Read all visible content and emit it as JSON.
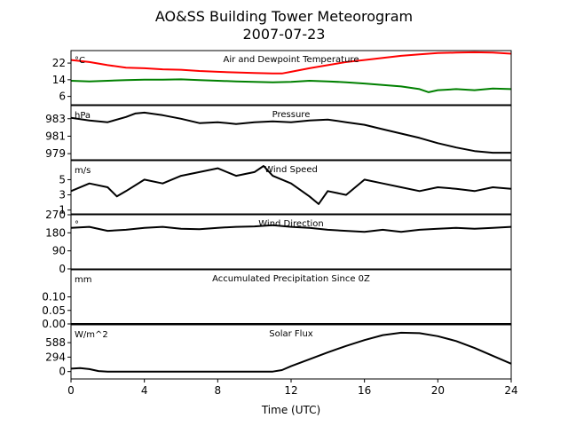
{
  "figure": {
    "title": "AO&SS Building Tower Meteorogram",
    "subtitle": "2007-07-23",
    "xlabel": "Time (UTC)"
  },
  "chart_data": {
    "type": "line",
    "x_axis": {
      "label": "Time (UTC)",
      "range": [
        0,
        24
      ],
      "ticks": [
        0,
        4,
        8,
        12,
        16,
        20,
        24
      ],
      "tick_labels": [
        "0",
        "4",
        "8",
        "12",
        "16",
        "20",
        "24"
      ]
    },
    "panels": [
      {
        "title": "Air and Dewpoint Temperature",
        "unit": "°C",
        "ylim": [
          2,
          28
        ],
        "yticks": [
          6,
          14,
          22
        ],
        "ytick_labels": [
          "6",
          "14",
          "22"
        ],
        "series": [
          {
            "color": "#ff0000",
            "x": [
              0,
              1,
              2,
              3,
              4,
              5,
              6,
              7,
              8,
              9,
              10,
              11,
              11.5,
              12,
              13,
              14,
              15,
              16,
              17,
              18,
              19,
              20,
              21,
              22,
              23,
              24
            ],
            "y": [
              23.5,
              22.5,
              21,
              19.8,
              19.5,
              19,
              18.8,
              18.2,
              17.8,
              17.5,
              17.2,
              17,
              17,
              17.8,
              19.5,
              21,
              22.5,
              23.5,
              24.5,
              25.5,
              26.2,
              26.8,
              27,
              27.2,
              27,
              26.5
            ]
          },
          {
            "color": "#008000",
            "x": [
              0,
              1,
              2,
              3,
              4,
              5,
              6,
              7,
              8,
              9,
              10,
              11,
              12,
              13,
              14,
              15,
              16,
              17,
              18,
              19,
              19.5,
              20,
              21,
              22,
              23,
              24
            ],
            "y": [
              13.5,
              13.2,
              13.5,
              13.8,
              14,
              14,
              14.2,
              13.8,
              13.5,
              13.2,
              13,
              12.8,
              13,
              13.5,
              13.2,
              12.8,
              12.2,
              11.5,
              10.8,
              9.5,
              8,
              9,
              9.5,
              9,
              9.8,
              9.5
            ]
          }
        ]
      },
      {
        "title": "Pressure",
        "unit": "hPa",
        "ylim": [
          978.3,
          984.5
        ],
        "yticks": [
          979,
          981,
          983
        ],
        "ytick_labels": [
          "979",
          "981",
          "983"
        ],
        "series": [
          {
            "color": "#000000",
            "x": [
              0,
              1,
              2,
              3,
              3.5,
              4,
              5,
              6,
              7,
              8,
              9,
              10,
              11,
              12,
              13,
              14,
              15,
              16,
              17,
              18,
              19,
              20,
              21,
              22,
              23,
              24
            ],
            "y": [
              983.1,
              982.8,
              982.6,
              983.2,
              983.6,
              983.7,
              983.4,
              983.0,
              982.5,
              982.6,
              982.4,
              982.6,
              982.7,
              982.6,
              982.8,
              982.9,
              982.6,
              982.3,
              981.8,
              981.3,
              980.8,
              980.2,
              979.7,
              979.3,
              979.1,
              979.1
            ]
          }
        ]
      },
      {
        "title": "Wind Speed",
        "unit": "m/s",
        "ylim": [
          0.5,
          7.5
        ],
        "yticks": [
          1,
          3,
          5
        ],
        "ytick_labels": [
          "1",
          "3",
          "5"
        ],
        "series": [
          {
            "color": "#000000",
            "x": [
              0,
              1,
              2,
              2.5,
              3,
              4,
              5,
              6,
              7,
              8,
              9,
              10,
              10.5,
              11,
              12,
              13,
              13.5,
              14,
              15,
              16,
              17,
              18,
              19,
              20,
              21,
              22,
              23,
              24
            ],
            "y": [
              3.5,
              4.5,
              4,
              2.8,
              3.5,
              5,
              4.5,
              5.5,
              6,
              6.5,
              5.5,
              6,
              6.8,
              5.5,
              4.5,
              2.8,
              1.8,
              3.5,
              3,
              5,
              4.5,
              4,
              3.5,
              4,
              3.8,
              3.5,
              4,
              3.8
            ]
          }
        ]
      },
      {
        "title": "Wind Direction",
        "unit": "°",
        "ylim": [
          0,
          270
        ],
        "yticks": [
          0,
          90,
          180,
          270
        ],
        "ytick_labels": [
          "0",
          "90",
          "180",
          "270"
        ],
        "series": [
          {
            "color": "#000000",
            "x": [
              0,
              1,
              2,
              3,
              4,
              5,
              6,
              7,
              8,
              9,
              10,
              11,
              12,
              13,
              14,
              15,
              16,
              17,
              18,
              19,
              20,
              21,
              22,
              23,
              24
            ],
            "y": [
              205,
              210,
              190,
              195,
              205,
              210,
              200,
              198,
              205,
              210,
              212,
              218,
              210,
              205,
              195,
              190,
              185,
              195,
              185,
              195,
              200,
              205,
              200,
              205,
              210
            ]
          }
        ]
      },
      {
        "title": "Accumulated Precipitation Since 0Z",
        "unit": "mm",
        "ylim": [
          0,
          0.2
        ],
        "yticks": [
          0.0,
          0.05,
          0.1
        ],
        "ytick_labels": [
          "0.00",
          "0.05",
          "0.10"
        ],
        "series": [
          {
            "color": "#000000",
            "x": [
              0,
              24
            ],
            "y": [
              0,
              0
            ]
          }
        ]
      },
      {
        "title": "Solar Flux",
        "unit": "W/m^2",
        "ylim": [
          -150,
          950
        ],
        "yticks": [
          0,
          294,
          588
        ],
        "ytick_labels": [
          "0",
          "294",
          "588"
        ],
        "series": [
          {
            "color": "#000000",
            "x": [
              0,
              0.5,
              1,
              1.5,
              2,
              4,
              6,
              8,
              10,
              11,
              11.5,
              12,
              13,
              14,
              15,
              16,
              17,
              18,
              19,
              20,
              21,
              22,
              23,
              24
            ],
            "y": [
              60,
              70,
              50,
              10,
              0,
              0,
              0,
              0,
              0,
              0,
              30,
              110,
              250,
              390,
              520,
              640,
              740,
              790,
              780,
              720,
              620,
              480,
              320,
              160
            ]
          }
        ]
      }
    ]
  }
}
